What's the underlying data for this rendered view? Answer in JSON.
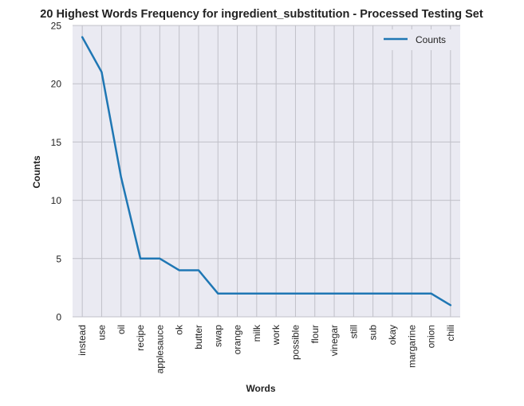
{
  "chart_data": {
    "type": "line",
    "title": "20 Highest Words Frequency for ingredient_substitution - Processed Testing Set",
    "xlabel": "Words",
    "ylabel": "Counts",
    "categories": [
      "instead",
      "use",
      "oil",
      "recipe",
      "applesauce",
      "ok",
      "butter",
      "swap",
      "orange",
      "milk",
      "work",
      "possible",
      "flour",
      "vinegar",
      "still",
      "sub",
      "okay",
      "margarine",
      "onion",
      "chili"
    ],
    "series": [
      {
        "name": "Counts",
        "color": "#1f77b4",
        "values": [
          24,
          21,
          12,
          5,
          5,
          4,
          4,
          2,
          2,
          2,
          2,
          2,
          2,
          2,
          2,
          2,
          2,
          2,
          2,
          1
        ]
      }
    ],
    "ylim": [
      0,
      25
    ],
    "yticks": [
      0,
      5,
      10,
      15,
      20,
      25
    ],
    "grid": true,
    "legend": "top-right",
    "plot_background": "#eaeaf2",
    "grid_color": "#c0c0c8"
  }
}
